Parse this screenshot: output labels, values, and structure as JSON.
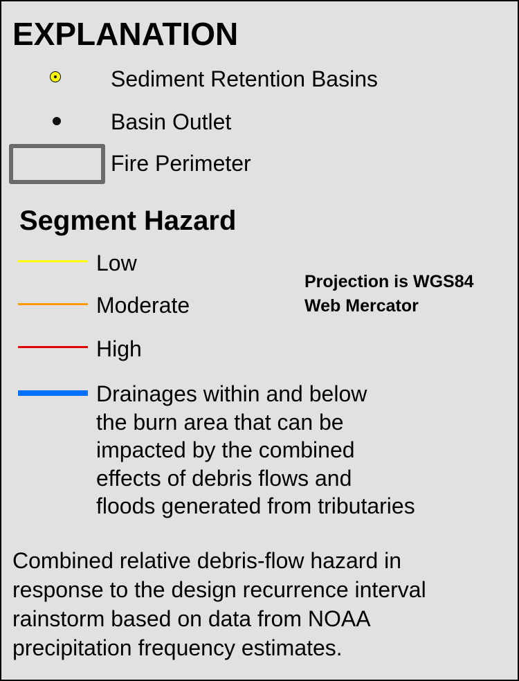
{
  "legend": {
    "title": "EXPLANATION",
    "items": [
      {
        "label": "Sediment Retention Basins",
        "symbol": "yellow-circle-icon",
        "fill": "#ffff00"
      },
      {
        "label": "Basin Outlet",
        "symbol": "black-dot-icon",
        "fill": "#111111"
      },
      {
        "label": "Fire Perimeter",
        "symbol": "gray-rectangle-outline",
        "stroke": "#6b6b6b"
      }
    ]
  },
  "segment_hazard": {
    "title": "Segment Hazard",
    "items": [
      {
        "label": "Low",
        "color": "#ffff00"
      },
      {
        "label": "Moderate",
        "color": "#ff9900"
      },
      {
        "label": "High",
        "color": "#e00000"
      }
    ],
    "drainage": {
      "color": "#0070ff",
      "lines": [
        "Drainages within and below",
        "the burn area that can be",
        "impacted by the combined",
        "effects of debris flows and",
        "floods generated from tributaries"
      ]
    }
  },
  "projection": {
    "lines": [
      "Projection is WGS84",
      "Web Mercator"
    ]
  },
  "description": {
    "lines": [
      "Combined relative debris-flow hazard in",
      "response to the design recurrence interval",
      "rainstorm based on data from NOAA",
      "precipitation frequency estimates."
    ]
  }
}
